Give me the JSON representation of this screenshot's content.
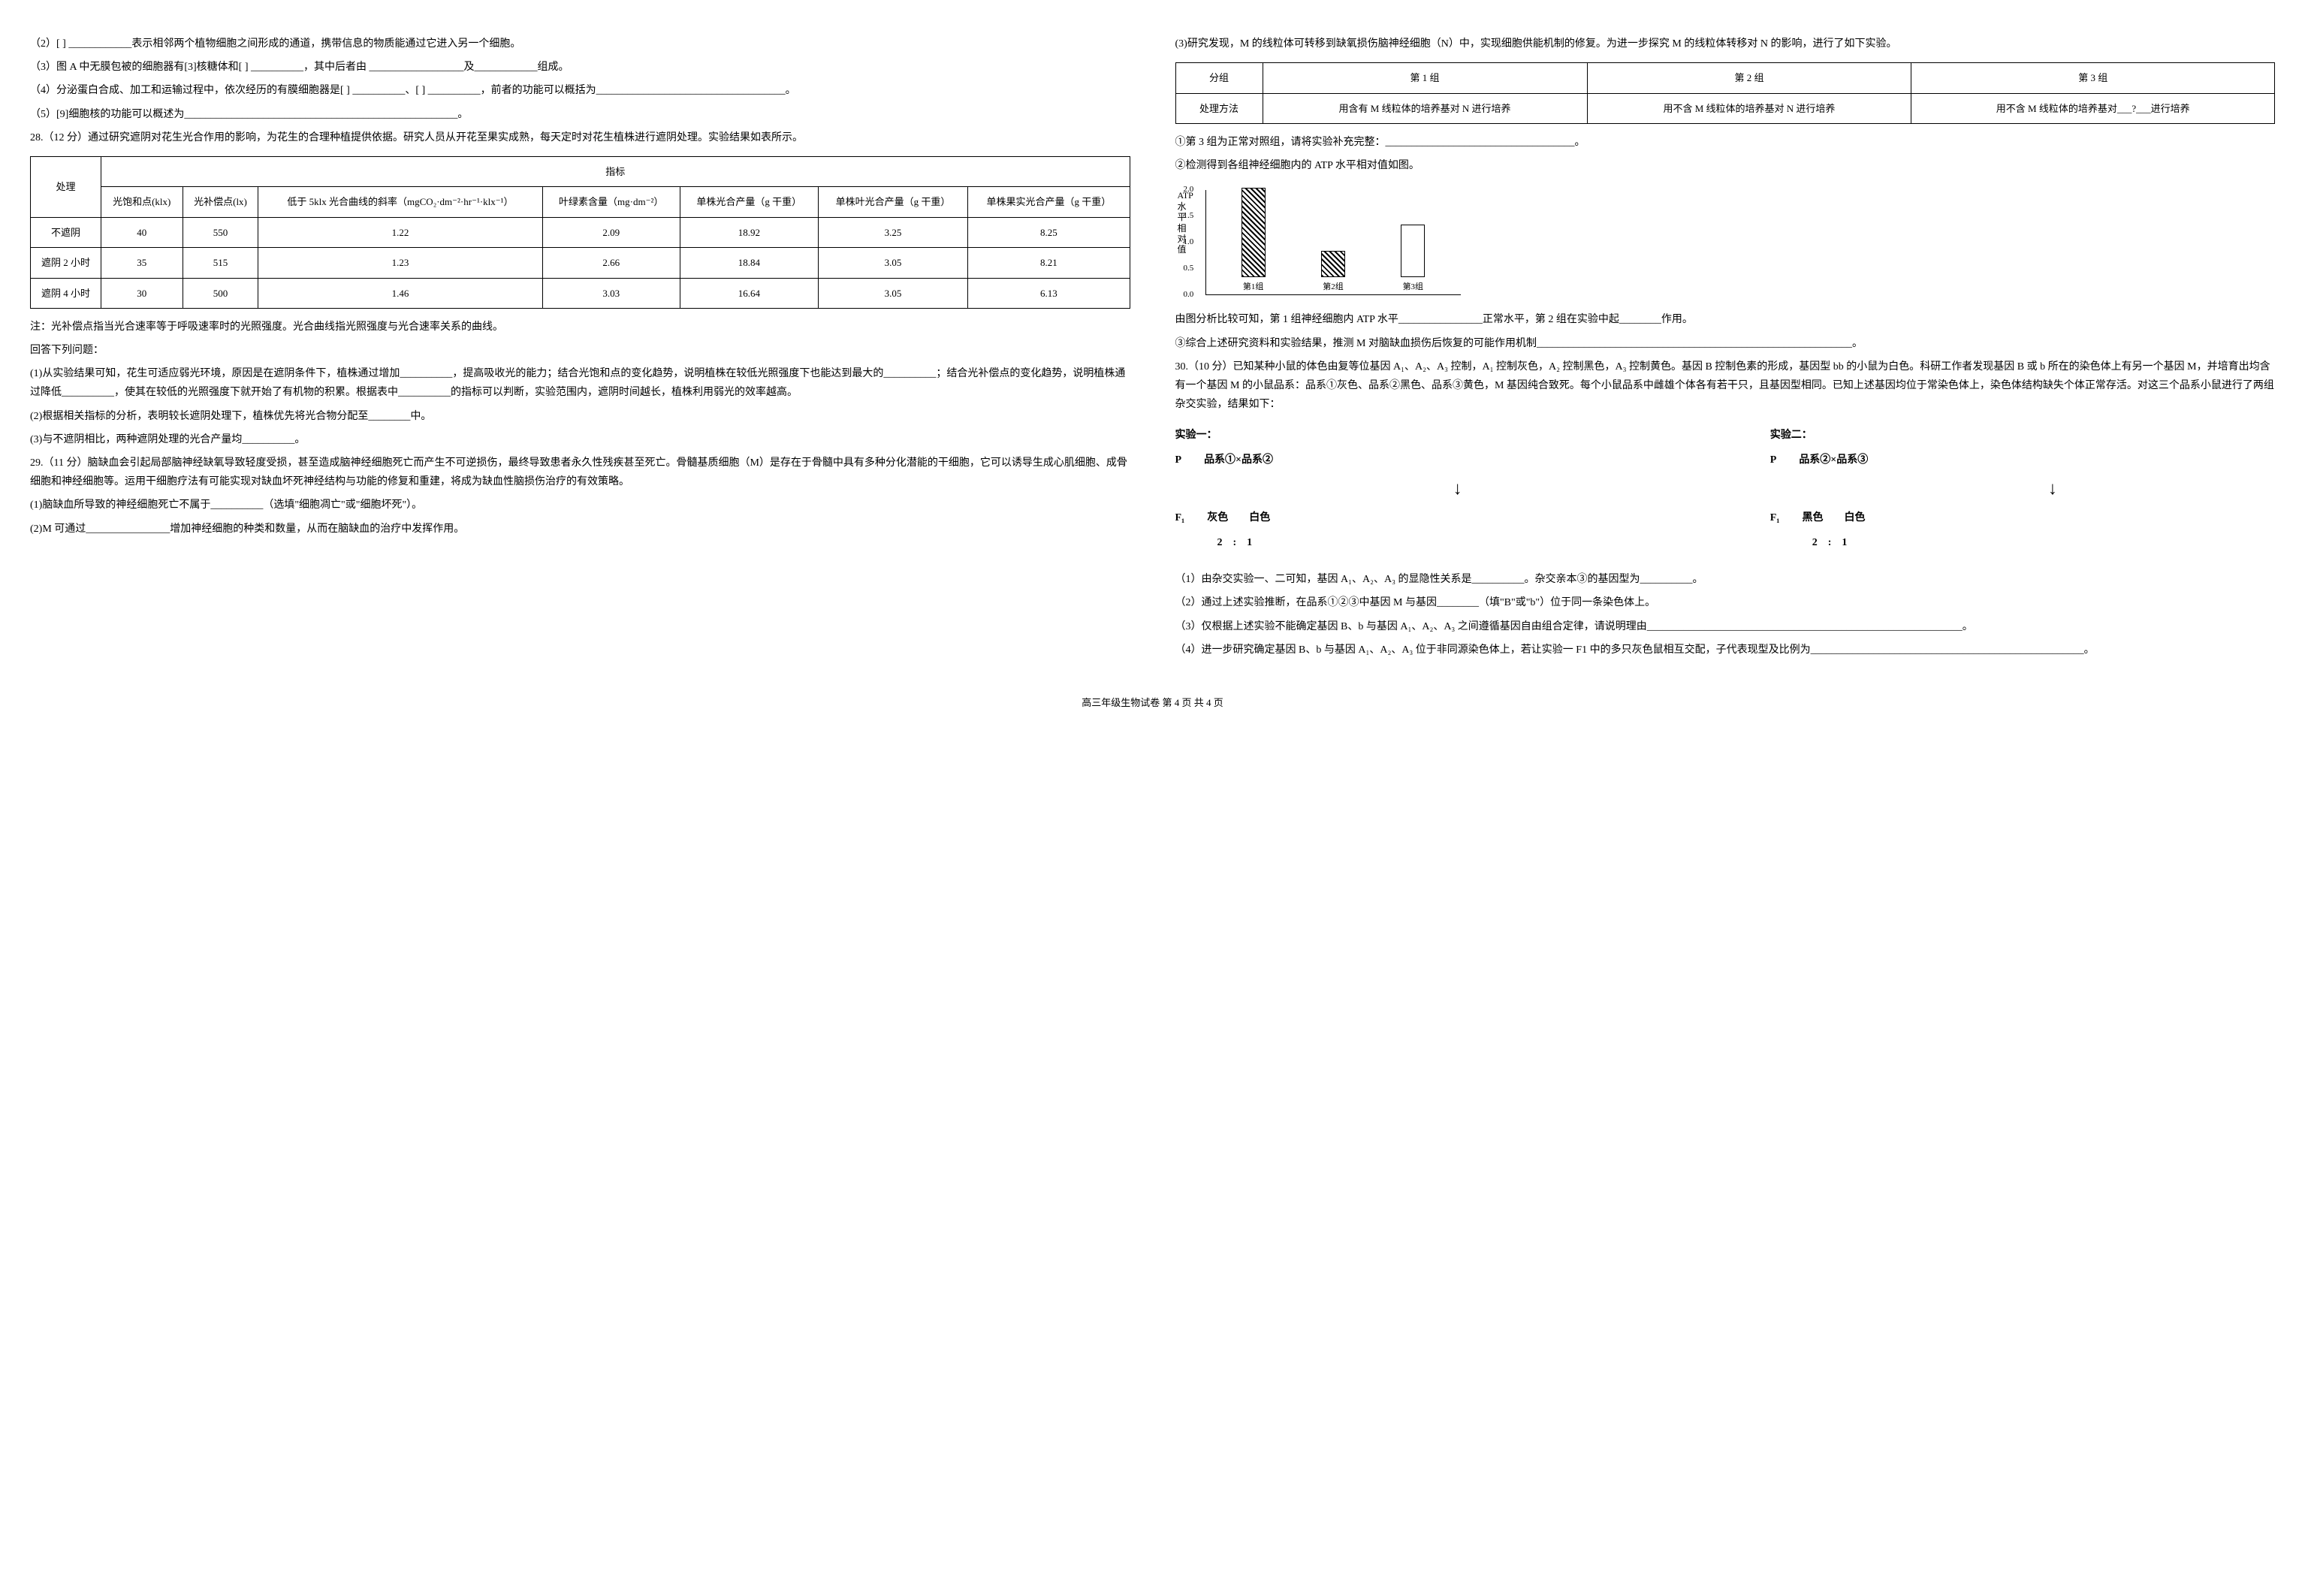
{
  "leftCol": {
    "q2": "（2）[    ] ____________表示相邻两个植物细胞之间形成的通道，携带信息的物质能通过它进入另一个细胞。",
    "q3": "（3）图 A 中无膜包被的细胞器有[3]核糖体和[    ] __________，其中后者由 __________________及____________组成。",
    "q4": "（4）分泌蛋白合成、加工和运输过程中，依次经历的有膜细胞器是[    ] __________、[    ] __________，前者的功能可以概括为____________________________________。",
    "q5": "（5）[9]细胞核的功能可以概述为____________________________________________________。",
    "q28Intro": "28.（12 分）通过研究遮阴对花生光合作用的影响，为花生的合理种植提供依据。研究人员从开花至果实成熟，每天定时对花生植株进行遮阴处理。实验结果如表所示。",
    "table1": {
      "headerMain": "指标",
      "col0": "处理",
      "col1": "光饱和点(klx)",
      "col2": "光补偿点(lx)",
      "col3": "低于 5klx 光合曲线的斜率（mgCO₂·dm⁻²·hr⁻¹·klx⁻¹）",
      "col4": "叶绿素含量（mg·dm⁻²）",
      "col5": "单株光合产量（g 干重）",
      "col6": "单株叶光合产量（g 干重）",
      "col7": "单株果实光合产量（g 干重）",
      "rows": [
        [
          "不遮阴",
          "40",
          "550",
          "1.22",
          "2.09",
          "18.92",
          "3.25",
          "8.25"
        ],
        [
          "遮阴 2 小时",
          "35",
          "515",
          "1.23",
          "2.66",
          "18.84",
          "3.05",
          "8.21"
        ],
        [
          "遮阴 4 小时",
          "30",
          "500",
          "1.46",
          "3.03",
          "16.64",
          "3.05",
          "6.13"
        ]
      ]
    },
    "note": "注：光补偿点指当光合速率等于呼吸速率时的光照强度。光合曲线指光照强度与光合速率关系的曲线。",
    "answerIntro": "回答下列问题：",
    "q28_1": "(1)从实验结果可知，花生可适应弱光环境，原因是在遮阴条件下，植株通过增加__________，提高吸收光的能力；结合光饱和点的变化趋势，说明植株在较低光照强度下也能达到最大的__________；结合光补偿点的变化趋势，说明植株通过降低__________，使其在较低的光照强度下就开始了有机物的积累。根据表中__________的指标可以判断，实验范围内，遮阴时间越长，植株利用弱光的效率越高。",
    "q28_2": "(2)根据相关指标的分析，表明较长遮阴处理下，植株优先将光合物分配至________中。",
    "q28_3": "(3)与不遮阴相比，两种遮阴处理的光合产量均__________。",
    "q29Intro": "29.（11 分）脑缺血会引起局部脑神经缺氧导致轻度受损，甚至造成脑神经细胞死亡而产生不可逆损伤，最终导致患者永久性残疾甚至死亡。骨髓基质细胞（M）是存在于骨髓中具有多种分化潜能的干细胞，它可以诱导生成心肌细胞、成骨细胞和神经细胞等。运用干细胞疗法有可能实现对缺血坏死神经结构与功能的修复和重建，将成为缺血性脑损伤治疗的有效策略。",
    "q29_1": "(1)脑缺血所导致的神经细胞死亡不属于__________（选填\"细胞凋亡\"或\"细胞坏死\"）。",
    "q29_2": "(2)M 可通过________________增加神经细胞的种类和数量，从而在脑缺血的治疗中发挥作用。"
  },
  "rightCol": {
    "q29_3Intro": "(3)研究发现，M 的线粒体可转移到缺氧损伤脑神经细胞（N）中，实现细胞供能机制的修复。为进一步探究 M 的线粒体转移对 N 的影响，进行了如下实验。",
    "table2": {
      "h0": "分组",
      "h1": "第 1 组",
      "h2": "第 2 组",
      "h3": "第 3 组",
      "r1c0": "处理方法",
      "r1c1": "用含有 M 线粒体的培养基对 N 进行培养",
      "r1c2": "用不含 M 线粒体的培养基对 N 进行培养",
      "r1c3": "用不含 M 线粒体的培养基对___?___进行培养"
    },
    "q29_3_1": "①第 3 组为正常对照组，请将实验补充完整：____________________________________。",
    "q29_3_2": "②检测得到各组神经细胞内的 ATP 水平相对值如图。",
    "chart": {
      "ylabel": "ATP\n水\n平\n相\n对\n值",
      "ylim": [
        0,
        2.0
      ],
      "yticks": [
        0,
        0.5,
        1.0,
        1.5,
        2.0
      ],
      "bars": [
        {
          "label": "第1组",
          "value": 1.7,
          "style": "hatched"
        },
        {
          "label": "第2组",
          "value": 0.5,
          "style": "hatched"
        },
        {
          "label": "第3组",
          "value": 1.0,
          "style": "outline"
        }
      ],
      "bg": "#ffffff",
      "barColor": "#000000"
    },
    "q29_3_3": "由图分析比较可知，第 1 组神经细胞内 ATP 水平________________正常水平，第 2 组在实验中起________作用。",
    "q29_3_4": "③综合上述研究资料和实验结果，推测 M 对脑缺血损伤后恢复的可能作用机制____________________________________________________________。",
    "q30Intro": "30.（10 分）已知某种小鼠的体色由复等位基因 A₁、A₂、A₃ 控制，A₁ 控制灰色，A₂ 控制黑色，A₃ 控制黄色。基因 B 控制色素的形成，基因型 bb 的小鼠为白色。科研工作者发现基因 B 或 b 所在的染色体上有另一个基因 M，并培育出均含有一个基因 M 的小鼠品系：品系①灰色、品系②黑色、品系③黄色，M 基因纯合致死。每个小鼠品系中雌雄个体各有若干只，且基因型相同。已知上述基因均位于常染色体上，染色体结构缺失个体正常存活。对这三个品系小鼠进行了两组杂交实验，结果如下：",
    "cross": {
      "exp1Label": "实验一：",
      "exp2Label": "实验二：",
      "p": "P",
      "f1": "F₁",
      "exp1P": "品系①×品系②",
      "exp1F1": "灰色        白色",
      "exp1Ratio": "2    :    1",
      "exp2P": "品系②×品系③",
      "exp2F1": "黑色        白色",
      "exp2Ratio": "2    :    1"
    },
    "q30_1": "（1）由杂交实验一、二可知，基因 A₁、A₂、A₃ 的显隐性关系是__________。杂交亲本③的基因型为__________。",
    "q30_2": "（2）通过上述实验推断，在品系①②③中基因 M 与基因________（填\"B\"或\"b\"）位于同一条染色体上。",
    "q30_3": "（3）仅根据上述实验不能确定基因 B、b 与基因 A₁、A₂、A₃ 之间遵循基因自由组合定律，请说明理由____________________________________________________________。",
    "q30_4": "（4）进一步研究确定基因 B、b 与基因 A₁、A₂、A₃ 位于非同源染色体上，若让实验一 F1 中的多只灰色鼠相互交配，子代表现型及比例为____________________________________________________。"
  },
  "footer": "高三年级生物试卷  第 4 页  共 4 页"
}
